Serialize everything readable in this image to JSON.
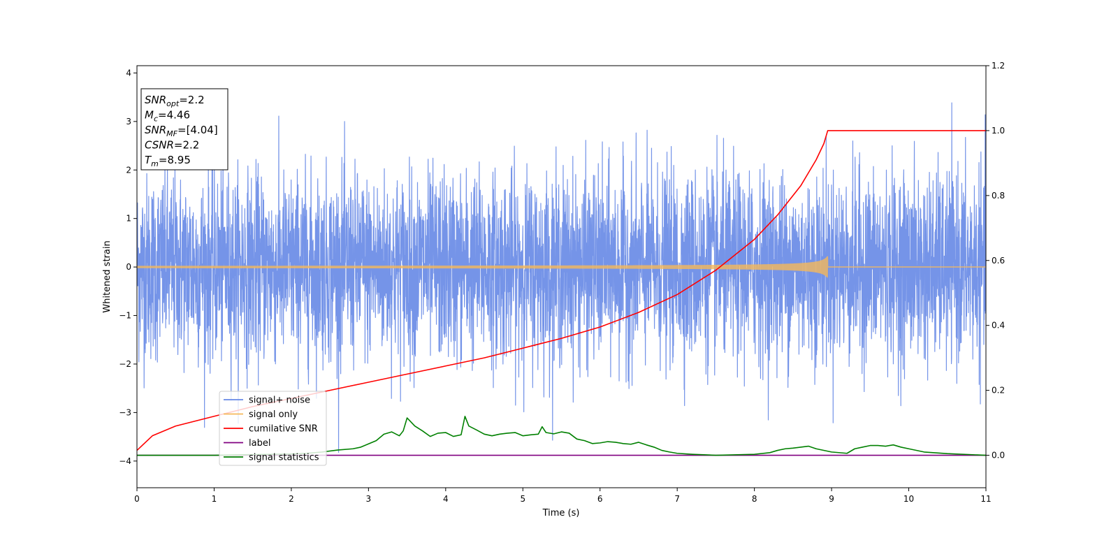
{
  "chart_data": {
    "type": "line",
    "xlabel": "Time (s)",
    "ylabel": "Whitened strain",
    "xlim": [
      0,
      11
    ],
    "ylim_left": [
      -4.55,
      4.15
    ],
    "ylim_right": [
      -0.1,
      1.2
    ],
    "x_ticks": [
      0,
      1,
      2,
      3,
      4,
      5,
      6,
      7,
      8,
      9,
      10,
      11
    ],
    "y_ticks_left": [
      -4,
      -3,
      -2,
      -1,
      0,
      1,
      2,
      3,
      4
    ],
    "y_ticks_right": [
      "0.0",
      "0.2",
      "0.4",
      "0.6",
      "0.8",
      "1.0",
      "1.2"
    ],
    "y_ticks_right_values": [
      0.0,
      0.2,
      0.4,
      0.6,
      0.8,
      1.0,
      1.2
    ],
    "legend_placement": "lower-left",
    "grid": false,
    "info_box": {
      "lines": [
        {
          "sym": "SNR",
          "sub": "opt",
          "val": "=2.2"
        },
        {
          "sym": "M",
          "sub": "c",
          "val": "=4.46"
        },
        {
          "sym": "SNR",
          "sub": "MF",
          "val": "=[4.04]"
        },
        {
          "sym": "CSNR",
          "sub": "",
          "val": "=2.2"
        },
        {
          "sym": "T",
          "sub": "m",
          "val": "=8.95"
        }
      ]
    },
    "series": [
      {
        "name": "signal+ noise",
        "axis": "left",
        "color": "#6688e6",
        "kind": "noise",
        "sigma": 0.95,
        "y_min": -4.15,
        "y_max": 3.75
      },
      {
        "name": "signal only",
        "axis": "left",
        "color": "#f5b85a",
        "kind": "chirp",
        "t_merge": 8.95,
        "peak_amplitude": 0.22
      },
      {
        "name": "cumilative SNR",
        "axis": "right",
        "color": "#ff0000",
        "x": [
          0,
          0.2,
          0.5,
          1,
          1.5,
          2,
          2.5,
          3,
          3.5,
          4,
          4.5,
          5,
          5.5,
          6,
          6.5,
          7,
          7.5,
          8,
          8.3,
          8.6,
          8.8,
          8.9,
          8.95,
          9.5,
          10,
          11
        ],
        "values": [
          0.015,
          0.06,
          0.09,
          0.12,
          0.15,
          0.175,
          0.2,
          0.225,
          0.25,
          0.275,
          0.3,
          0.33,
          0.36,
          0.395,
          0.44,
          0.495,
          0.57,
          0.665,
          0.74,
          0.83,
          0.91,
          0.96,
          1.0,
          1.0,
          1.0,
          1.0
        ]
      },
      {
        "name": "label",
        "axis": "right",
        "color": "#800080",
        "x": [
          0,
          11
        ],
        "values": [
          0.0,
          0.0
        ]
      },
      {
        "name": "signal statistics",
        "axis": "right",
        "color": "#008000",
        "x": [
          0,
          0.5,
          1,
          1.5,
          2,
          2.2,
          2.4,
          2.6,
          2.8,
          2.9,
          3.0,
          3.1,
          3.2,
          3.3,
          3.4,
          3.45,
          3.5,
          3.6,
          3.7,
          3.8,
          3.9,
          4.0,
          4.1,
          4.2,
          4.25,
          4.3,
          4.4,
          4.5,
          4.6,
          4.7,
          4.8,
          4.9,
          5.0,
          5.1,
          5.2,
          5.25,
          5.3,
          5.4,
          5.5,
          5.6,
          5.7,
          5.8,
          5.9,
          6.0,
          6.1,
          6.2,
          6.3,
          6.4,
          6.5,
          6.6,
          6.7,
          6.8,
          6.9,
          7.0,
          7.2,
          7.5,
          8.0,
          8.2,
          8.3,
          8.4,
          8.5,
          8.6,
          8.7,
          8.8,
          9.0,
          9.2,
          9.3,
          9.4,
          9.5,
          9.6,
          9.7,
          9.8,
          9.9,
          10.0,
          10.2,
          10.5,
          11
        ],
        "values": [
          0.0,
          0.0,
          0.0,
          0.002,
          0.004,
          0.006,
          0.01,
          0.016,
          0.02,
          0.025,
          0.035,
          0.045,
          0.065,
          0.072,
          0.06,
          0.075,
          0.115,
          0.09,
          0.075,
          0.058,
          0.068,
          0.07,
          0.058,
          0.063,
          0.12,
          0.09,
          0.078,
          0.065,
          0.06,
          0.065,
          0.068,
          0.07,
          0.06,
          0.063,
          0.065,
          0.088,
          0.07,
          0.066,
          0.072,
          0.068,
          0.05,
          0.045,
          0.036,
          0.038,
          0.042,
          0.04,
          0.036,
          0.034,
          0.04,
          0.032,
          0.025,
          0.015,
          0.01,
          0.006,
          0.003,
          0.0,
          0.003,
          0.008,
          0.015,
          0.02,
          0.022,
          0.025,
          0.028,
          0.02,
          0.01,
          0.006,
          0.02,
          0.025,
          0.03,
          0.03,
          0.028,
          0.032,
          0.025,
          0.02,
          0.01,
          0.005,
          0.0
        ]
      }
    ]
  }
}
